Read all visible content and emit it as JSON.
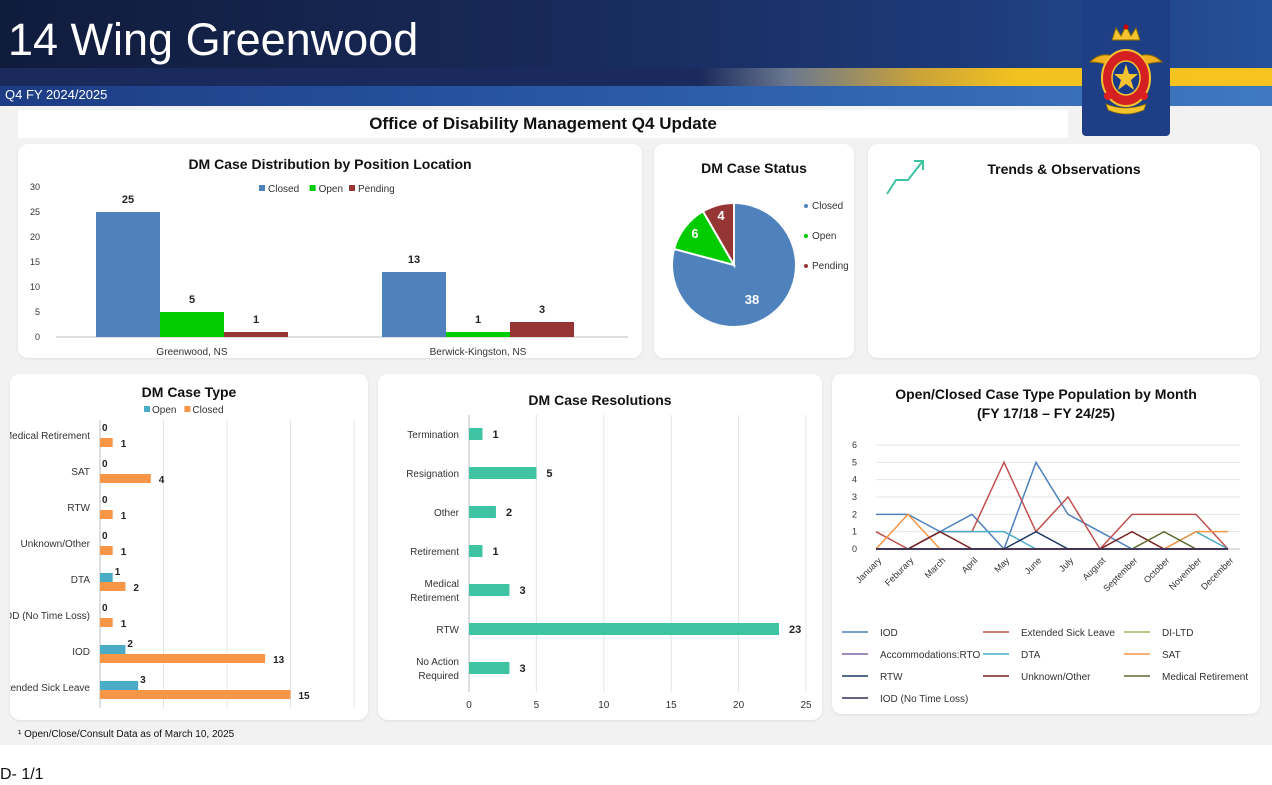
{
  "header": {
    "title": "14 Wing Greenwood",
    "subtitle": "Q4 FY 2024/2025",
    "update_title": "Office of Disability Management Q4 Update"
  },
  "colors": {
    "closed_blue": "#4f81bd",
    "open_green": "#00cc00",
    "pending_red": "#963634",
    "type_open": "#4bacc6",
    "type_closed": "#f79646",
    "resolution": "#3fc4a3"
  },
  "trends": {
    "title": "Trends & Observations",
    "icon": "trend-up-arrow-icon"
  },
  "footnote": "¹ Open/Close/Consult Data as of March 10, 2025",
  "page_number": "D- 1/1",
  "chart_data": [
    {
      "id": "distribution",
      "type": "bar",
      "title": "DM Case Distribution by Position Location",
      "categories": [
        "Greenwood, NS",
        "Berwick-Kingston, NS"
      ],
      "series": [
        {
          "name": "Closed",
          "values": [
            25,
            13
          ]
        },
        {
          "name": "Open",
          "values": [
            5,
            1
          ]
        },
        {
          "name": "Pending",
          "values": [
            1,
            3
          ]
        }
      ],
      "ylim": [
        0,
        30
      ],
      "yticks": [
        0,
        5,
        10,
        15,
        20,
        25,
        30
      ],
      "legend": "top"
    },
    {
      "id": "status",
      "type": "pie",
      "title": "DM Case Status",
      "labels": [
        "Closed",
        "Open",
        "Pending"
      ],
      "values": [
        38,
        6,
        4
      ],
      "legend": "right"
    },
    {
      "id": "case_type",
      "type": "bar",
      "orientation": "horizontal",
      "title": "DM Case Type",
      "categories": [
        "Medical Retirement",
        "SAT",
        "RTW",
        "Unknown/Other",
        "DTA",
        "IOD (No Time Loss)",
        "IOD",
        "Extended Sick Leave"
      ],
      "series": [
        {
          "name": "Open",
          "values": [
            0,
            0,
            0,
            0,
            1,
            0,
            2,
            3
          ]
        },
        {
          "name": "Closed",
          "values": [
            1,
            4,
            1,
            1,
            2,
            1,
            13,
            15
          ]
        }
      ],
      "xlim": [
        0,
        20
      ],
      "xticks": [
        0,
        20
      ],
      "legend": "top"
    },
    {
      "id": "resolutions",
      "type": "bar",
      "orientation": "horizontal",
      "title": "DM Case Resolutions",
      "categories": [
        "Termination",
        "Resignation",
        "Other",
        "Retirement",
        "Medical Retirement",
        "RTW",
        "No Action Required"
      ],
      "values": [
        1,
        5,
        2,
        1,
        3,
        23,
        3
      ],
      "xlim": [
        0,
        25
      ],
      "xticks": [
        0,
        5,
        10,
        15,
        20,
        25
      ]
    },
    {
      "id": "monthly",
      "type": "line",
      "title": "Open/Closed Case Type Population by Month",
      "subtitle": "(FY 17/18 – FY 24/25)",
      "x": [
        "January",
        "Feburary",
        "March",
        "April",
        "May",
        "June",
        "July",
        "August",
        "September",
        "October",
        "November",
        "December"
      ],
      "ylim": [
        0,
        6
      ],
      "yticks": [
        0,
        1,
        2,
        3,
        4,
        5,
        6
      ],
      "legend": "bottom",
      "series": [
        {
          "name": "IOD",
          "color": "#4f81bd",
          "values": [
            2,
            2,
            1,
            2,
            0,
            5,
            2,
            1,
            0,
            0,
            0,
            0
          ]
        },
        {
          "name": "Extended Sick Leave",
          "color": "#c0504d",
          "values": [
            1,
            0,
            1,
            1,
            5,
            1,
            3,
            0,
            2,
            2,
            2,
            0
          ]
        },
        {
          "name": "DI-LTD",
          "color": "#9bbb59",
          "values": [
            0,
            0,
            0,
            0,
            0,
            0,
            0,
            0,
            0,
            0,
            0,
            0
          ]
        },
        {
          "name": "Accommodations:RTO",
          "color": "#8064a2",
          "values": [
            0,
            0,
            0,
            0,
            0,
            0,
            0,
            0,
            0,
            0,
            0,
            0
          ]
        },
        {
          "name": "DTA",
          "color": "#4bacc6",
          "values": [
            0,
            0,
            1,
            1,
            1,
            0,
            0,
            0,
            0,
            0,
            1,
            0
          ]
        },
        {
          "name": "SAT",
          "color": "#f79646",
          "values": [
            0,
            2,
            0,
            0,
            0,
            0,
            0,
            0,
            0,
            0,
            1,
            1
          ]
        },
        {
          "name": "RTW",
          "color": "#1f3864",
          "values": [
            0,
            0,
            0,
            0,
            0,
            1,
            0,
            0,
            0,
            0,
            0,
            0
          ]
        },
        {
          "name": "Unknown/Other",
          "color": "#7b2020",
          "values": [
            0,
            0,
            1,
            0,
            0,
            0,
            0,
            0,
            1,
            0,
            0,
            0
          ]
        },
        {
          "name": "Medical Retirement",
          "color": "#5c6b2e",
          "values": [
            0,
            0,
            0,
            0,
            0,
            0,
            0,
            0,
            0,
            1,
            0,
            0
          ]
        },
        {
          "name": "IOD (No Time Loss)",
          "color": "#3a2a5a",
          "values": [
            0,
            0,
            0,
            0,
            0,
            0,
            0,
            0,
            0,
            0,
            0,
            0
          ]
        }
      ]
    }
  ]
}
